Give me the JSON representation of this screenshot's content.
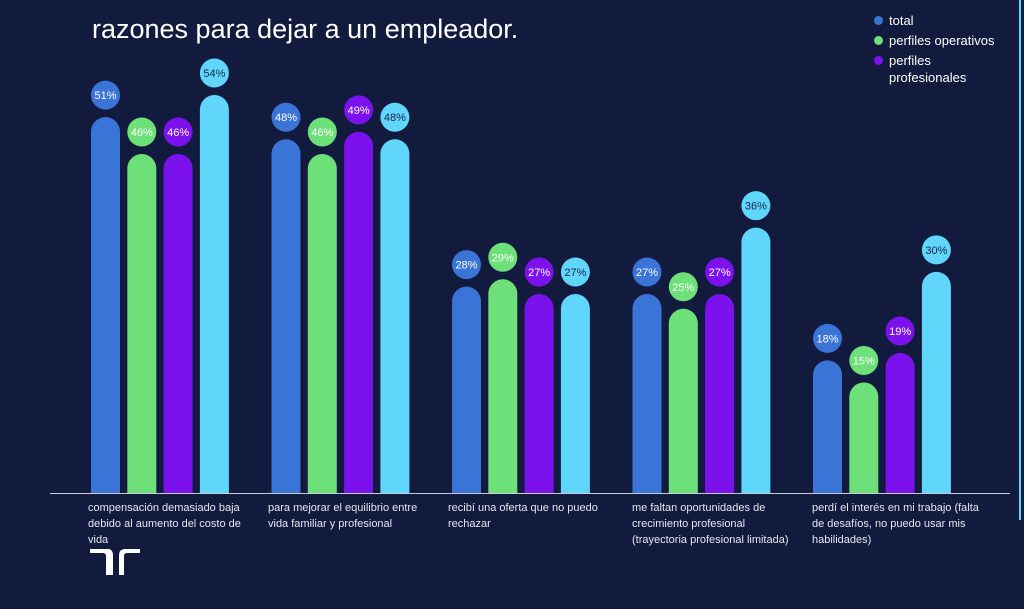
{
  "chart_data": {
    "type": "bar",
    "title": "razones para dejar a un empleador.",
    "categories": [
      "compensación demasiado baja debido al aumento del costo de vida",
      "para mejorar el equilibrio entre vida familiar y profesional",
      "recibí una oferta que no puedo rechazar",
      "me faltan oportunidades de crecimiento profesional (trayectoria profesional limitada)",
      "perdí el interés en mi trabajo (falta de desafíos, no puedo usar mis habilidades)"
    ],
    "series": [
      {
        "name": "total",
        "color": "#3a74d6",
        "values": [
          51,
          48,
          28,
          27,
          18
        ]
      },
      {
        "name": "perfiles operativos",
        "color": "#6ee07a",
        "values": [
          46,
          46,
          29,
          25,
          15
        ]
      },
      {
        "name": "perfiles profesionales",
        "color": "#7b12ee",
        "values": [
          46,
          49,
          27,
          27,
          19
        ]
      },
      {
        "color": "#5fd6fa",
        "values": [
          54,
          48,
          27,
          36,
          30
        ]
      }
    ],
    "value_suffix": "%",
    "ylim": [
      0,
      60
    ],
    "grid": false,
    "legend_placement": "top-right"
  }
}
